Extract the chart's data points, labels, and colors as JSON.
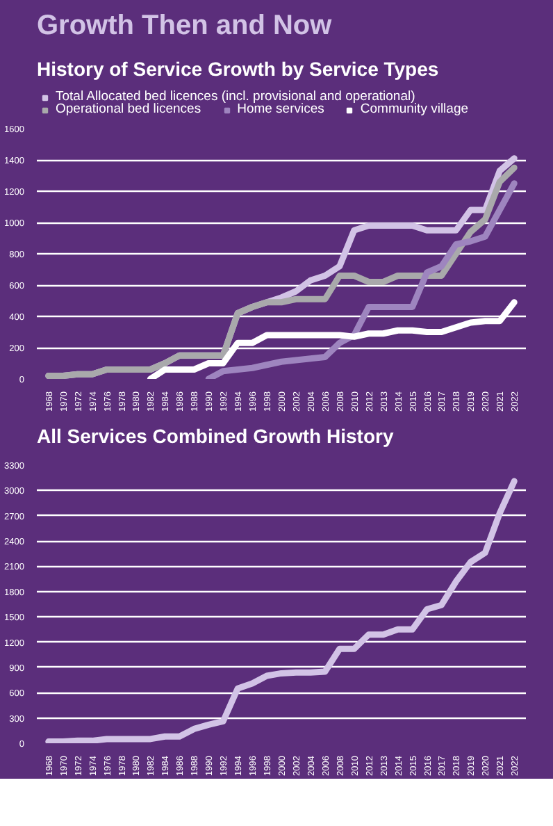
{
  "chart_data": [
    {
      "type": "line",
      "title": "Growth Then and Now",
      "subtitle": "History of Service Growth by Service Types",
      "categories": [
        "1968",
        "1970",
        "1972",
        "1974",
        "1976",
        "1978",
        "1980",
        "1982",
        "1984",
        "1986",
        "1988",
        "1990",
        "1992",
        "1994",
        "1996",
        "1998",
        "2000",
        "2002",
        "2004",
        "2006",
        "2008",
        "2010",
        "2012",
        "2013",
        "2014",
        "2015",
        "2016",
        "2017",
        "2018",
        "2019",
        "2020",
        "2021",
        "2022"
      ],
      "series": [
        {
          "name": "Total Allocated bed licences (incl. provisional and operational)",
          "color": "#d2c3e6",
          "values": [
            20,
            20,
            30,
            30,
            60,
            60,
            60,
            60,
            100,
            150,
            150,
            150,
            150,
            420,
            460,
            490,
            520,
            560,
            630,
            660,
            720,
            950,
            980,
            980,
            980,
            980,
            950,
            950,
            950,
            1080,
            1080,
            1330,
            1410
          ]
        },
        {
          "name": "Operational bed licences",
          "color": "#a9a9ab",
          "values": [
            20,
            20,
            30,
            30,
            60,
            60,
            60,
            60,
            100,
            150,
            150,
            150,
            150,
            420,
            460,
            490,
            490,
            510,
            510,
            510,
            660,
            660,
            620,
            620,
            660,
            660,
            660,
            660,
            800,
            940,
            1020,
            1260,
            1350
          ]
        },
        {
          "name": "Home services",
          "color": "#9e85bf",
          "values": [
            null,
            null,
            null,
            null,
            null,
            null,
            null,
            null,
            null,
            null,
            null,
            0,
            50,
            60,
            70,
            90,
            110,
            120,
            130,
            140,
            230,
            280,
            460,
            460,
            460,
            460,
            680,
            720,
            860,
            880,
            910,
            1080,
            1250
          ]
        },
        {
          "name": "Community village",
          "color": "#ffffff",
          "values": [
            null,
            null,
            null,
            null,
            null,
            null,
            null,
            0,
            60,
            60,
            60,
            100,
            100,
            230,
            230,
            280,
            280,
            280,
            280,
            280,
            280,
            270,
            290,
            290,
            310,
            310,
            300,
            300,
            330,
            360,
            370,
            370,
            490
          ]
        }
      ],
      "ylim": [
        0,
        1600
      ],
      "yticks": [
        0,
        200,
        400,
        600,
        800,
        1000,
        1200,
        1400,
        1600
      ],
      "grid": "y",
      "legend": "top"
    },
    {
      "type": "line",
      "title": "All Services Combined Growth History",
      "categories": [
        "1968",
        "1970",
        "1972",
        "1974",
        "1976",
        "1978",
        "1980",
        "1982",
        "1984",
        "1986",
        "1988",
        "1990",
        "1992",
        "1994",
        "1996",
        "1998",
        "2000",
        "2002",
        "2004",
        "2006",
        "2008",
        "2010",
        "2012",
        "2013",
        "2014",
        "2015",
        "2016",
        "2017",
        "2018",
        "2019",
        "2020",
        "2021",
        "2022"
      ],
      "series": [
        {
          "color": "#d2c3e6",
          "values": [
            20,
            20,
            30,
            30,
            50,
            50,
            50,
            50,
            80,
            80,
            170,
            220,
            260,
            650,
            710,
            800,
            830,
            840,
            840,
            850,
            1120,
            1120,
            1290,
            1290,
            1350,
            1350,
            1590,
            1640,
            1920,
            2150,
            2260,
            2730,
            3110
          ]
        }
      ],
      "ylim": [
        0,
        3300
      ],
      "yticks": [
        0,
        300,
        600,
        900,
        1200,
        1500,
        1800,
        2100,
        2400,
        2700,
        3000,
        3300
      ],
      "grid": "y"
    }
  ]
}
